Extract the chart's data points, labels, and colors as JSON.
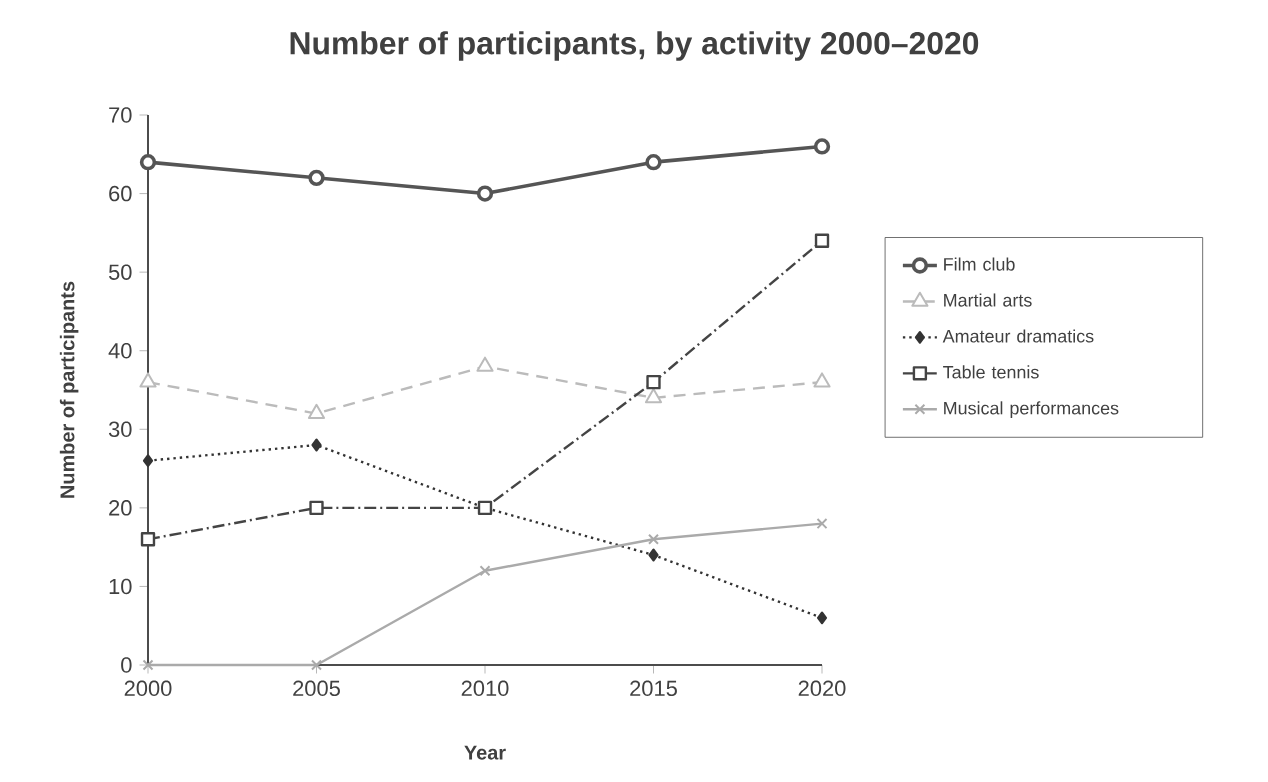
{
  "chart_data": {
    "type": "line",
    "title": "Number of participants, by activity 2000–2020",
    "xlabel": "Year",
    "ylabel": "Number of participants",
    "x": [
      2000,
      2005,
      2010,
      2015,
      2020
    ],
    "xlim": [
      2000,
      2020
    ],
    "xticks": [
      2000,
      2005,
      2010,
      2015,
      2020
    ],
    "ylim": [
      0,
      70
    ],
    "yticks": [
      0,
      10,
      20,
      30,
      40,
      50,
      60,
      70
    ],
    "grid": false,
    "legend": "right",
    "series": [
      {
        "name": "Film club",
        "color": "#555555",
        "marker": "circle",
        "line_style": "solid",
        "values": [
          64,
          62,
          60,
          64,
          66
        ]
      },
      {
        "name": "Martial arts",
        "color": "#bbbbbb",
        "marker": "triangle",
        "line_style": "dashed",
        "values": [
          36,
          32,
          38,
          34,
          36
        ]
      },
      {
        "name": "Amateur dramatics",
        "color": "#333333",
        "marker": "diamond",
        "line_style": "dotted",
        "values": [
          26,
          28,
          20,
          14,
          6
        ]
      },
      {
        "name": "Table tennis",
        "color": "#444444",
        "marker": "square",
        "line_style": "dashdot",
        "values": [
          16,
          20,
          20,
          36,
          54
        ]
      },
      {
        "name": "Musical performances",
        "color": "#aaaaaa",
        "marker": "cross",
        "line_style": "solid",
        "values": [
          0,
          0,
          12,
          16,
          18
        ]
      }
    ]
  }
}
